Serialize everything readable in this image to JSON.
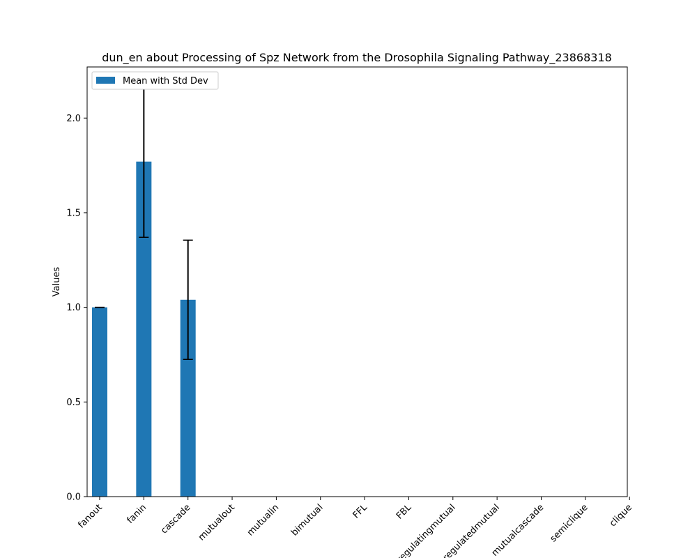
{
  "chart_data": {
    "type": "bar",
    "title": "dun_en about Processing of Spz Network from the Drosophila Signaling Pathway_23868318",
    "xlabel": "",
    "ylabel": "Values",
    "categories": [
      "fanout",
      "fanin",
      "cascade",
      "mutualout",
      "mutualin",
      "bimutual",
      "FFL",
      "FBL",
      "regulatingmutual",
      "regulatedmutual",
      "mutualcascade",
      "semiclique",
      "clique"
    ],
    "series": [
      {
        "name": "Mean with Std Dev",
        "values": [
          1.0,
          1.77,
          1.04,
          0,
          0,
          0,
          0,
          0,
          0,
          0,
          0,
          0,
          0
        ],
        "std": [
          0.0,
          0.4,
          0.315,
          0,
          0,
          0,
          0,
          0,
          0,
          0,
          0,
          0,
          0
        ],
        "color": "#1f77b4"
      }
    ],
    "ylim": [
      0,
      2.27
    ],
    "yticks": [
      "0.0",
      "0.5",
      "1.0",
      "1.5",
      "2.0"
    ],
    "legend_position": "upper-left",
    "grid": false
  }
}
